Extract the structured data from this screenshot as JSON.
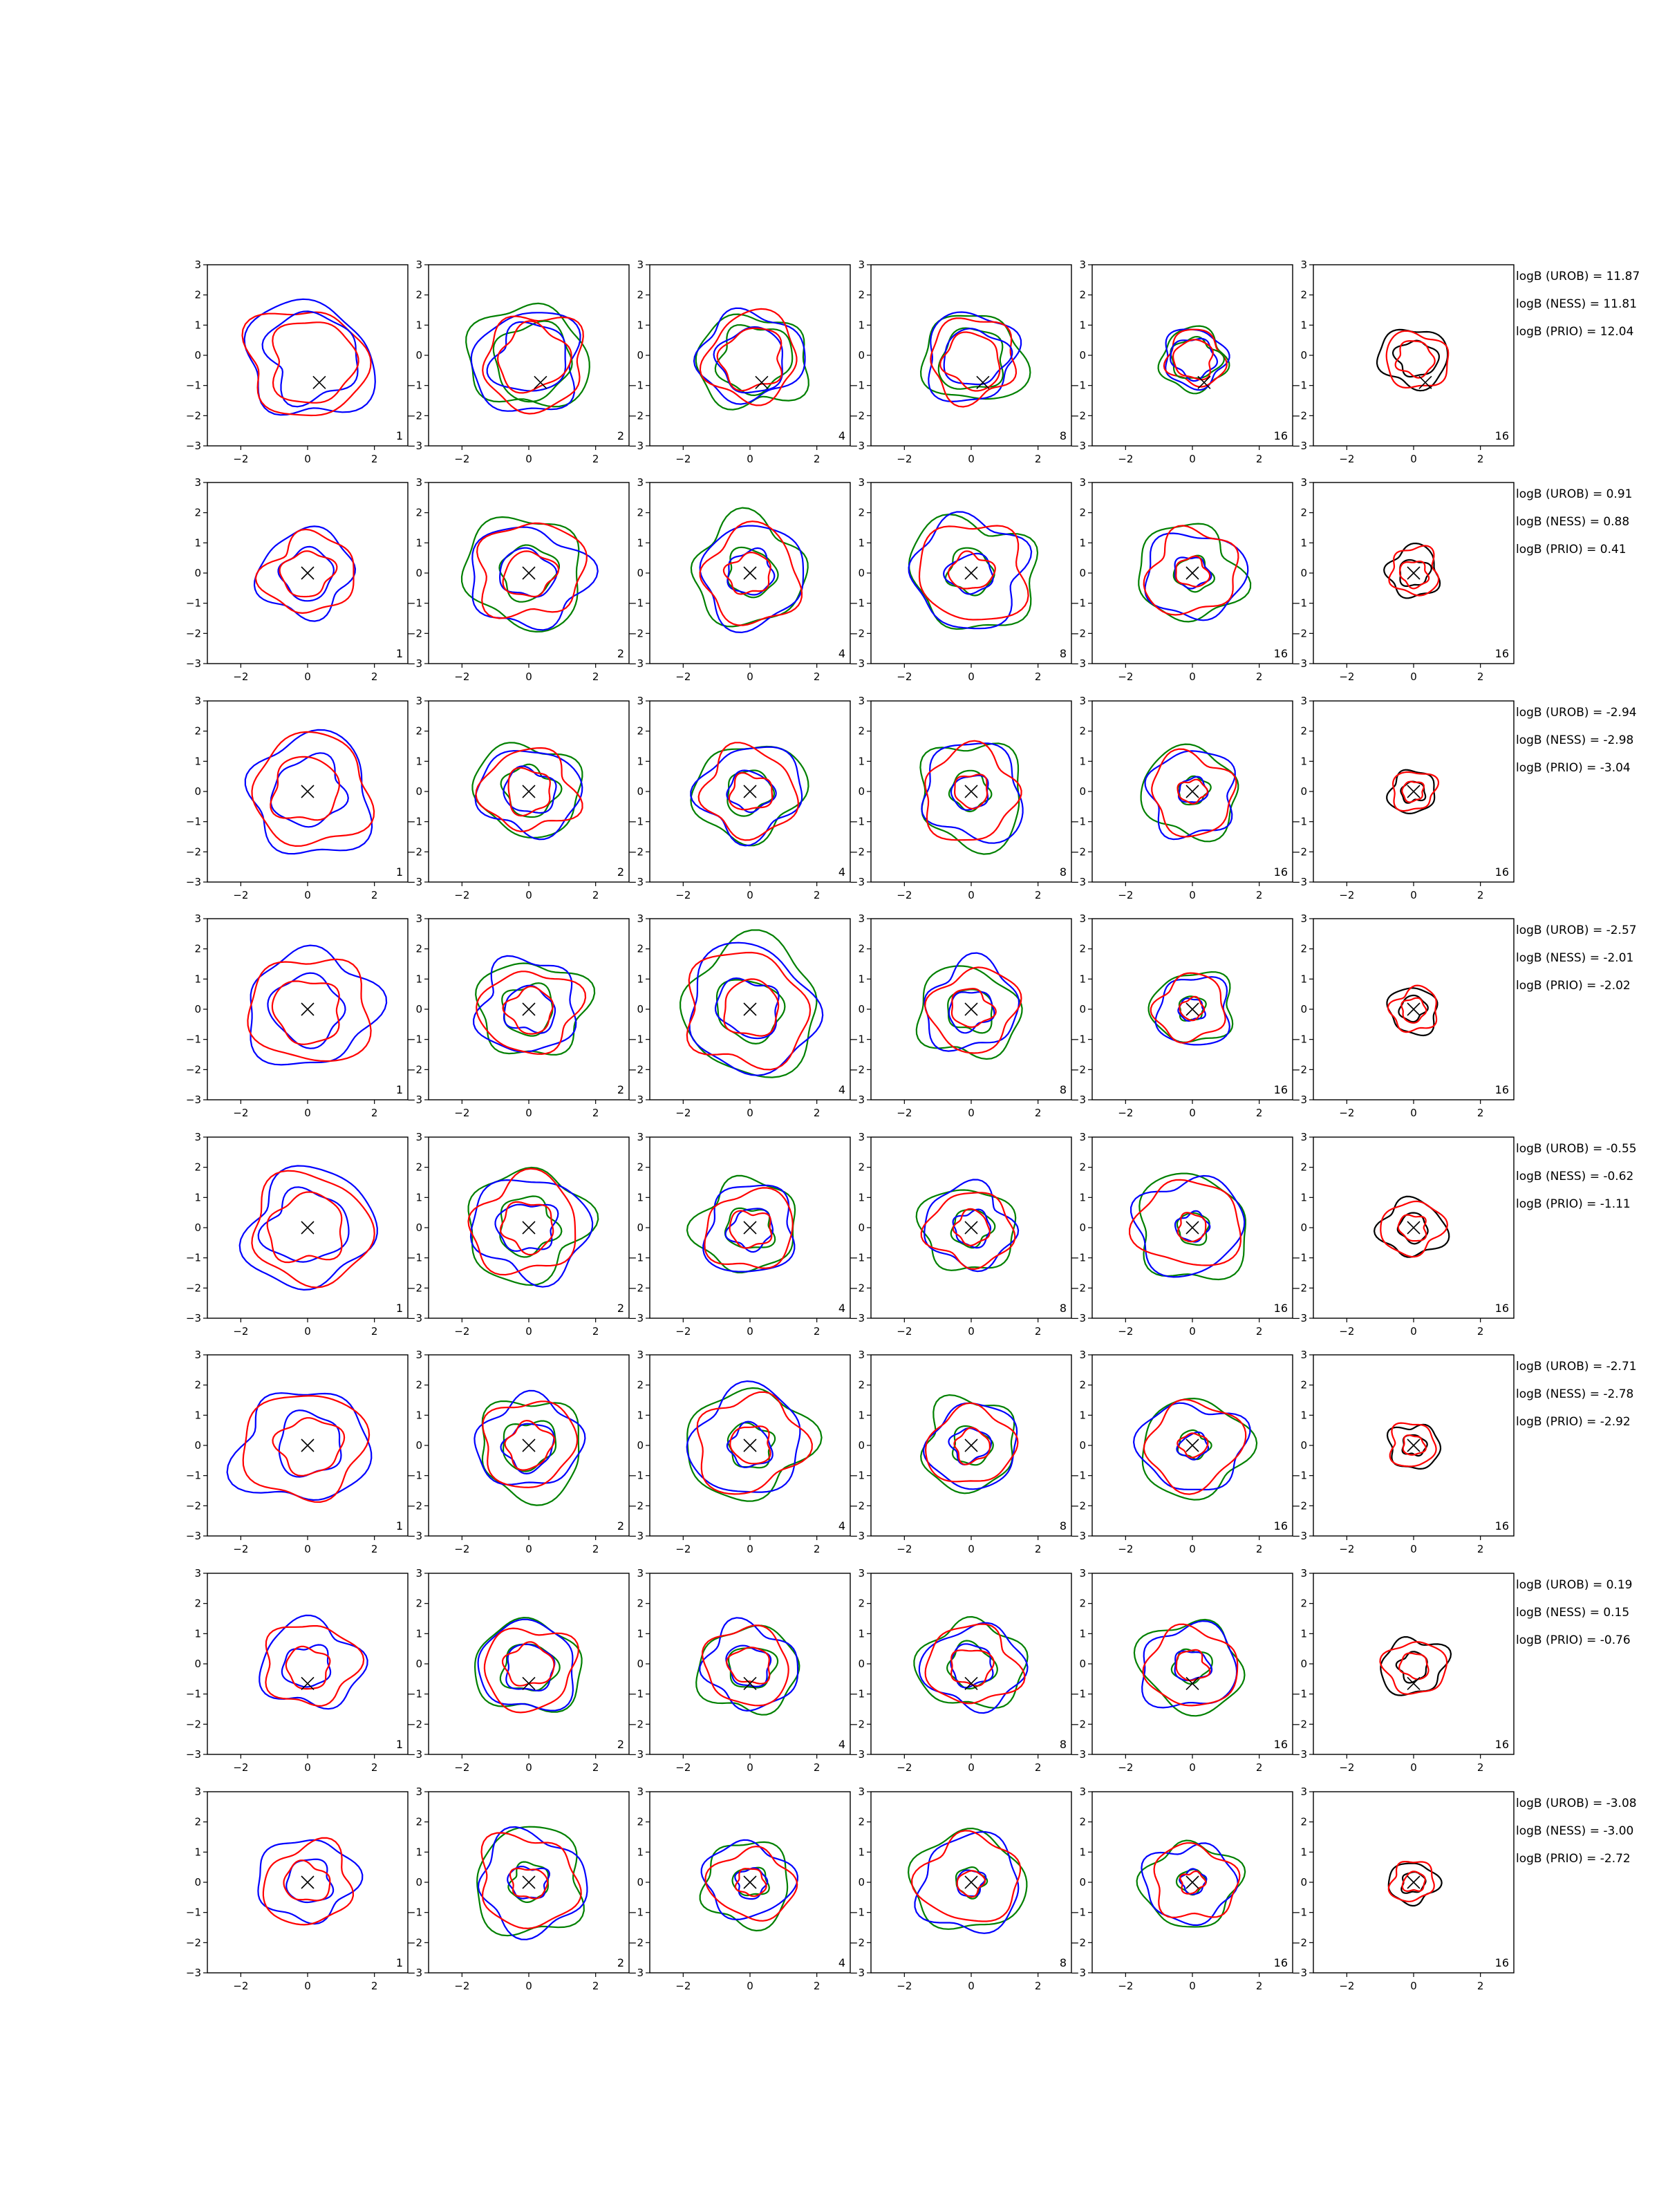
{
  "chart_data": {
    "type": "contour-grid",
    "rows": 8,
    "cols": 6,
    "xlim": [
      -3,
      3
    ],
    "ylim": [
      -3,
      3
    ],
    "x_ticks": [
      -2,
      0,
      2
    ],
    "y_ticks": [
      -3,
      -2,
      -1,
      0,
      1,
      2,
      3
    ],
    "tick_labels": {
      "x": [
        "−2",
        "0",
        "2"
      ],
      "y": [
        "−3",
        "−2",
        "−1",
        "0",
        "1",
        "2",
        "3"
      ]
    },
    "column_labels": [
      "1",
      "2",
      "4",
      "8",
      "16",
      "16"
    ],
    "colors": {
      "blue": "#0000ff",
      "red": "#ff0000",
      "green": "#008000",
      "black": "#000000"
    },
    "column_styles": [
      [
        "blue",
        "red",
        "blue",
        "red"
      ],
      [
        "green",
        "blue",
        "red",
        "green",
        "blue",
        "red"
      ],
      [
        "green",
        "blue",
        "red",
        "green",
        "blue",
        "red"
      ],
      [
        "green",
        "blue",
        "red",
        "green",
        "blue",
        "red"
      ],
      [
        "green",
        "blue",
        "red",
        "green",
        "blue",
        "red"
      ],
      [
        "black",
        "red",
        "black",
        "red"
      ]
    ],
    "rows_data": [
      {
        "marker": [
          0.35,
          -0.9
        ],
        "radii": [
          [
            1.9,
            1.4
          ],
          [
            1.75,
            1.2
          ],
          [
            1.6,
            1.1
          ],
          [
            1.5,
            1.0
          ],
          [
            1.0,
            0.7
          ],
          [
            1.0,
            0.6
          ]
        ],
        "annotations": [
          "logB (UROB) = 11.87",
          "logB (NESS) = 11.81",
          "logB (PRIO) = 12.04"
        ]
      },
      {
        "marker": [
          0.0,
          0.0
        ],
        "radii": [
          [
            1.4,
            0.8
          ],
          [
            1.8,
            0.85
          ],
          [
            1.7,
            0.75
          ],
          [
            1.85,
            0.7
          ],
          [
            1.55,
            0.55
          ],
          [
            0.8,
            0.45
          ]
        ],
        "annotations": [
          "logB (UROB) = 0.91",
          "logB (NESS) = 0.88",
          "logB (PRIO) = 0.41"
        ]
      },
      {
        "marker": [
          0.0,
          0.0
        ],
        "radii": [
          [
            1.9,
            1.1
          ],
          [
            1.55,
            0.8
          ],
          [
            1.6,
            0.7
          ],
          [
            1.65,
            0.6
          ],
          [
            1.45,
            0.45
          ],
          [
            0.7,
            0.35
          ]
        ],
        "annotations": [
          "logB (UROB) = -2.94",
          "logB (NESS) = -2.98",
          "logB (PRIO) = -3.04"
        ]
      },
      {
        "marker": [
          0.0,
          0.0
        ],
        "radii": [
          [
            1.9,
            1.1
          ],
          [
            1.6,
            0.8
          ],
          [
            2.1,
            1.0
          ],
          [
            1.5,
            0.7
          ],
          [
            1.2,
            0.4
          ],
          [
            0.75,
            0.4
          ]
        ],
        "annotations": [
          "logB (UROB) = -2.57",
          "logB (NESS) = -2.01",
          "logB (PRIO) = -2.02"
        ]
      },
      {
        "marker": [
          0.0,
          0.0
        ],
        "radii": [
          [
            1.9,
            1.2
          ],
          [
            1.8,
            0.9
          ],
          [
            1.5,
            0.7
          ],
          [
            1.4,
            0.6
          ],
          [
            1.7,
            0.5
          ],
          [
            0.95,
            0.45
          ]
        ],
        "annotations": [
          "logB (UROB) = -0.55",
          "logB (NESS) = -0.62",
          "logB (PRIO) = -1.11"
        ]
      },
      {
        "marker": [
          0.0,
          0.0
        ],
        "radii": [
          [
            1.9,
            1.0
          ],
          [
            1.6,
            0.8
          ],
          [
            1.8,
            0.7
          ],
          [
            1.45,
            0.6
          ],
          [
            1.6,
            0.45
          ],
          [
            0.75,
            0.35
          ]
        ],
        "annotations": [
          "logB (UROB) = -2.71",
          "logB (NESS) = -2.78",
          "logB (PRIO) = -2.92"
        ]
      },
      {
        "marker": [
          0.0,
          -0.65
        ],
        "radii": [
          [
            1.45,
            0.7
          ],
          [
            1.55,
            0.8
          ],
          [
            1.45,
            0.7
          ],
          [
            1.5,
            0.7
          ],
          [
            1.5,
            0.55
          ],
          [
            0.95,
            0.45
          ]
        ],
        "annotations": [
          "logB (UROB) = 0.19",
          "logB (NESS) = 0.15",
          "logB (PRIO) = -0.76"
        ]
      },
      {
        "marker": [
          0.0,
          0.0
        ],
        "radii": [
          [
            1.4,
            0.7
          ],
          [
            1.7,
            0.6
          ],
          [
            1.35,
            0.5
          ],
          [
            1.65,
            0.45
          ],
          [
            1.4,
            0.4
          ],
          [
            0.7,
            0.35
          ]
        ],
        "annotations": [
          "logB (UROB) = -3.08",
          "logB (NESS) = -3.00",
          "logB (PRIO) = -2.72"
        ]
      }
    ]
  }
}
